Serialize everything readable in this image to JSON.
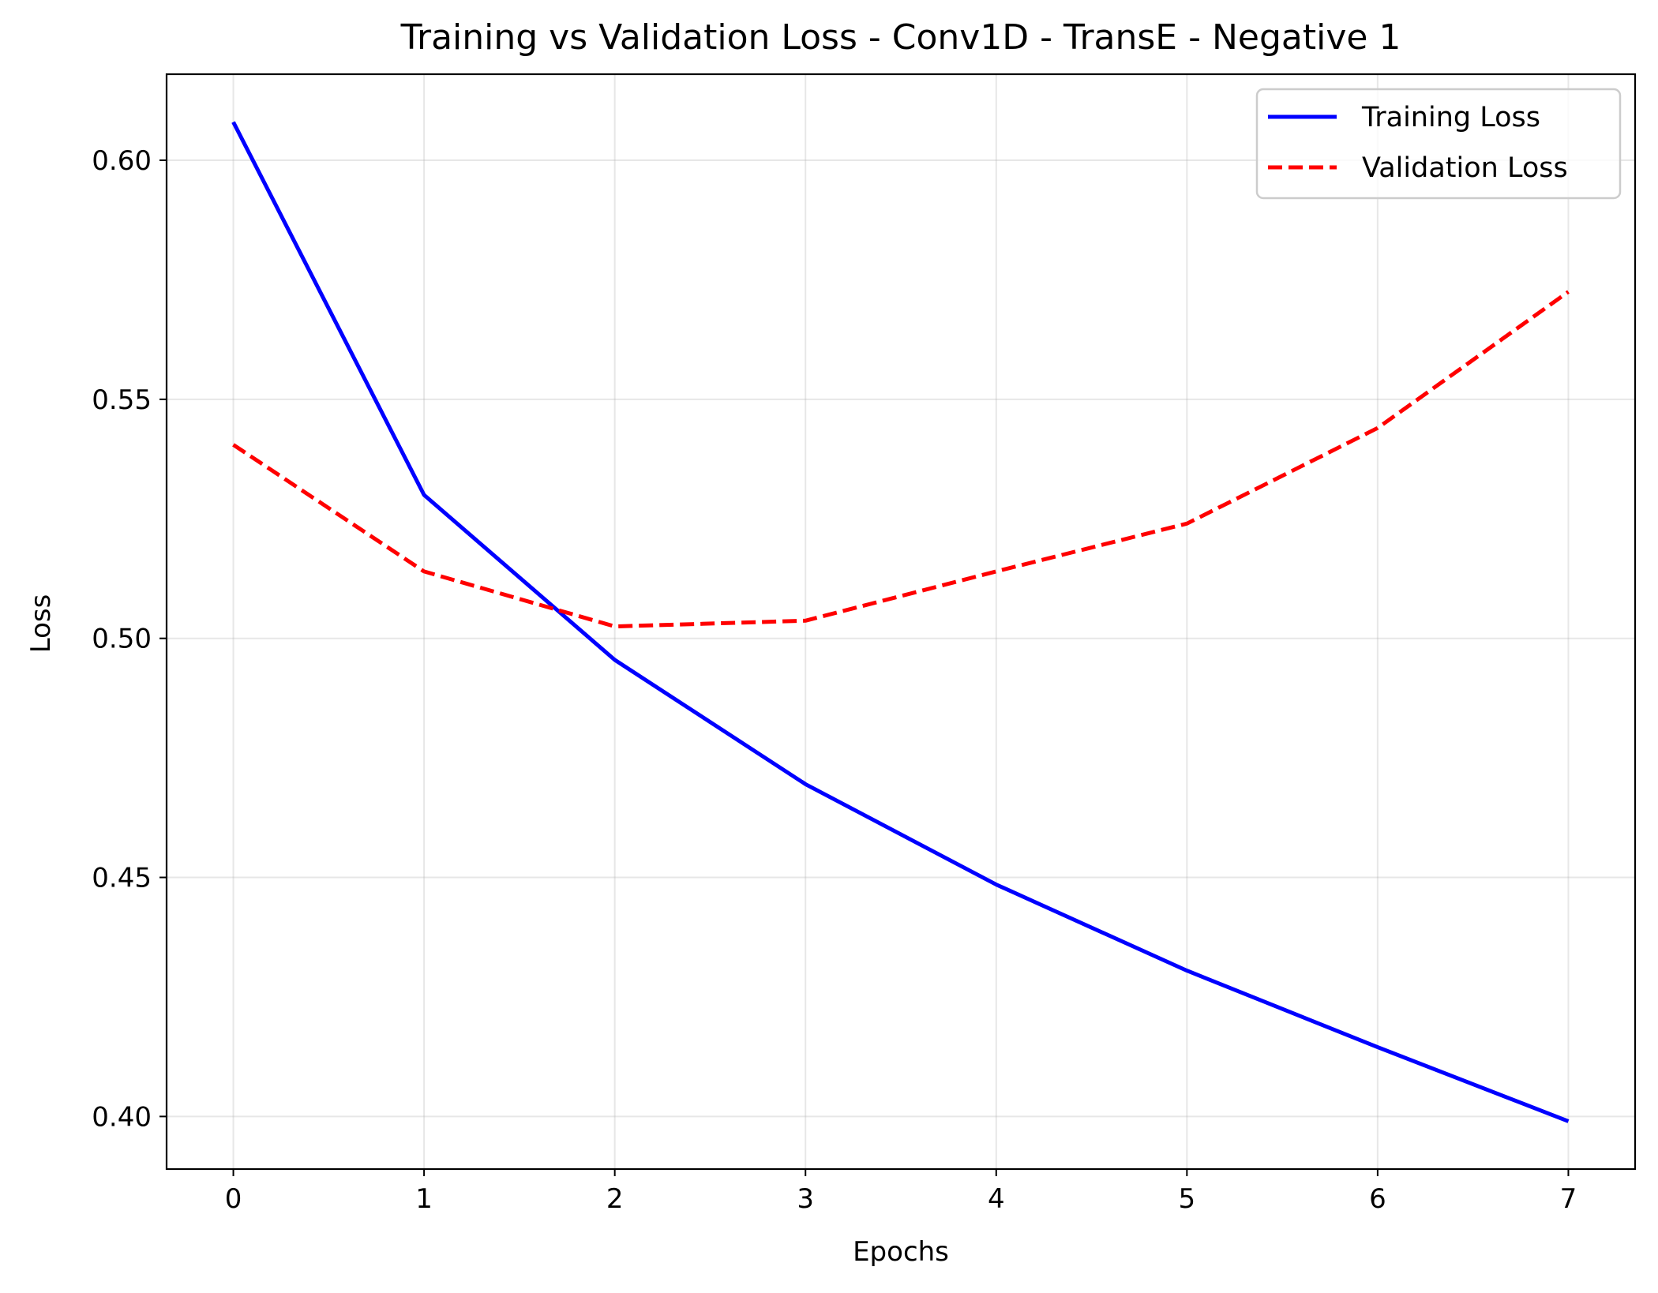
{
  "chart_data": {
    "type": "line",
    "title": "Training vs Validation Loss - Conv1D - TransE - Negative 1",
    "xlabel": "Epochs",
    "ylabel": "Loss",
    "x": [
      0,
      1,
      2,
      3,
      4,
      5,
      6,
      7
    ],
    "xticks": [
      "0",
      "1",
      "2",
      "3",
      "4",
      "5",
      "6",
      "7"
    ],
    "yticks": [
      "0.40",
      "0.45",
      "0.50",
      "0.55",
      "0.60"
    ],
    "xlim": [
      -0.35,
      7.35
    ],
    "ylim": [
      0.389,
      0.618
    ],
    "grid": true,
    "legend_position": "upper right",
    "series": [
      {
        "name": "Training Loss",
        "color": "#0000ff",
        "style": "solid",
        "values": [
          0.608,
          0.53,
          0.4955,
          0.4695,
          0.4485,
          0.4305,
          0.4145,
          0.399
        ]
      },
      {
        "name": "Validation Loss",
        "color": "#ff0000",
        "style": "dashed",
        "values": [
          0.5405,
          0.514,
          0.5025,
          0.5037,
          0.514,
          0.524,
          0.544,
          0.5725
        ]
      }
    ]
  }
}
